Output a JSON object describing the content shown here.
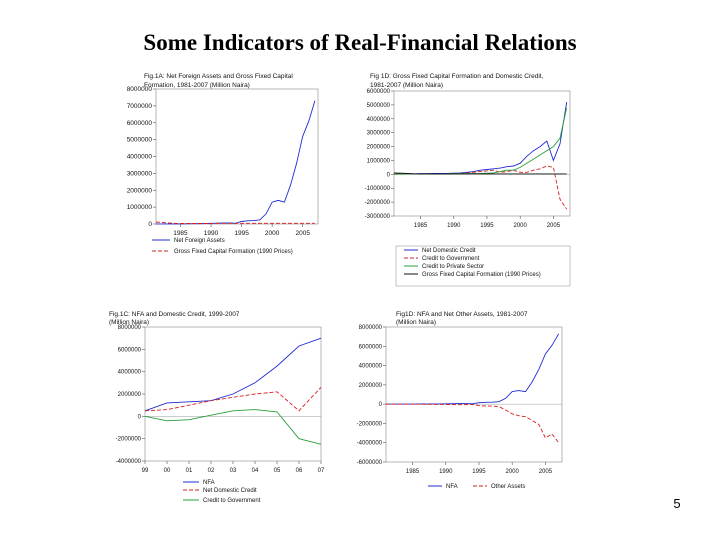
{
  "slide": {
    "title": "Some Indicators of Real-Financial Relations",
    "page_number": "5"
  },
  "chart_data": [
    {
      "type": "line",
      "title_lines": [
        "Fig.1A: Net Foreign Assets and Gross Fixed Capital",
        "Formation, 1981-2007 (Million Naira)"
      ],
      "x": [
        1981,
        1982,
        1983,
        1984,
        1985,
        1986,
        1987,
        1988,
        1989,
        1990,
        1991,
        1992,
        1993,
        1994,
        1995,
        1996,
        1997,
        1998,
        1999,
        2000,
        2001,
        2002,
        2003,
        2004,
        2005,
        2006,
        2007
      ],
      "xlim": [
        1981,
        2007.5
      ],
      "xticks": [
        1985,
        1990,
        1995,
        2000,
        2005
      ],
      "ylim": [
        0,
        8000000
      ],
      "yticks": [
        0,
        1000000,
        2000000,
        3000000,
        4000000,
        5000000,
        6000000,
        7000000,
        8000000
      ],
      "series": [
        {
          "name": "Net Foreign Assets",
          "color": "#1f2bd0",
          "dash": "",
          "values": [
            5000,
            4000,
            3000,
            3000,
            5000,
            10000,
            15000,
            20000,
            30000,
            40000,
            50000,
            60000,
            60000,
            40000,
            150000,
            190000,
            200000,
            250000,
            600000,
            1300000,
            1400000,
            1300000,
            2300000,
            3600000,
            5200000,
            6100000,
            7300000
          ]
        },
        {
          "name": "Gross Fixed Capital Formation (1990 Prices)",
          "color": "#d62020",
          "dash": "4,2",
          "values": [
            120000,
            90000,
            60000,
            40000,
            30000,
            30000,
            30000,
            30000,
            30000,
            30000,
            40000,
            40000,
            40000,
            40000,
            40000,
            40000,
            40000,
            40000,
            40000,
            40000,
            40000,
            40000,
            40000,
            40000,
            40000,
            40000,
            40000
          ]
        }
      ]
    },
    {
      "type": "line",
      "title_lines": [
        "Fig 1D: Gross Fixed Capital Formation and Domestic Credit,",
        "1981-2007 (Million Naira)"
      ],
      "x": [
        1981,
        1982,
        1983,
        1984,
        1985,
        1986,
        1987,
        1988,
        1989,
        1990,
        1991,
        1992,
        1993,
        1994,
        1995,
        1996,
        1997,
        1998,
        1999,
        2000,
        2001,
        2002,
        2003,
        2004,
        2005,
        2006,
        2007
      ],
      "xlim": [
        1981,
        2007.5
      ],
      "xticks": [
        1985,
        1990,
        1995,
        2000,
        2005
      ],
      "ylim": [
        -3000000,
        6000000
      ],
      "yticks": [
        -3000000,
        -2000000,
        -1000000,
        0,
        1000000,
        2000000,
        3000000,
        4000000,
        5000000,
        6000000
      ],
      "series": [
        {
          "name": "Net Domestic Credit",
          "color": "#1f2bd0",
          "dash": "",
          "values": [
            20000,
            30000,
            40000,
            40000,
            50000,
            50000,
            60000,
            70000,
            70000,
            80000,
            100000,
            150000,
            200000,
            300000,
            350000,
            400000,
            450000,
            550000,
            600000,
            800000,
            1300000,
            1700000,
            2000000,
            2400000,
            1000000,
            2200000,
            5200000
          ]
        },
        {
          "name": "Credit to Government",
          "color": "#d62020",
          "dash": "4,2",
          "values": [
            10000,
            20000,
            20000,
            20000,
            30000,
            30000,
            30000,
            30000,
            30000,
            30000,
            50000,
            100000,
            150000,
            200000,
            250000,
            300000,
            150000,
            200000,
            300000,
            150000,
            150000,
            300000,
            400000,
            600000,
            500000,
            -1800000,
            -2500000
          ]
        },
        {
          "name": "Credit to Private Sector",
          "color": "#29a03a",
          "dash": "",
          "values": [
            10000,
            10000,
            20000,
            20000,
            20000,
            20000,
            30000,
            30000,
            40000,
            50000,
            50000,
            50000,
            50000,
            60000,
            80000,
            100000,
            200000,
            300000,
            300000,
            500000,
            800000,
            1100000,
            1400000,
            1700000,
            2000000,
            2600000,
            4800000
          ]
        },
        {
          "name": "Gross Fixed Capital Formation (1990 Prices)",
          "color": "#111111",
          "dash": "",
          "values": [
            100000,
            80000,
            60000,
            40000,
            30000,
            30000,
            30000,
            30000,
            30000,
            30000,
            30000,
            30000,
            30000,
            30000,
            30000,
            30000,
            30000,
            30000,
            30000,
            30000,
            30000,
            30000,
            30000,
            30000,
            30000,
            30000,
            30000
          ]
        }
      ]
    },
    {
      "type": "line",
      "title_lines": [
        "Fig.1C: NFA and Domestic Credit, 1999-2007",
        "(Million Naira)"
      ],
      "x": [
        1999,
        2000,
        2001,
        2002,
        2003,
        2004,
        2005,
        2006,
        2007
      ],
      "x_tick_labels": [
        "99",
        "00",
        "01",
        "02",
        "03",
        "04",
        "05",
        "06",
        "07"
      ],
      "xlim": [
        1999,
        2007
      ],
      "ylim": [
        -4000000,
        8000000
      ],
      "yticks": [
        -4000000,
        -2000000,
        0,
        2000000,
        4000000,
        6000000,
        8000000
      ],
      "series": [
        {
          "name": "NFA",
          "color": "#1f2bd0",
          "dash": "",
          "values": [
            500000,
            1200000,
            1300000,
            1400000,
            2000000,
            3000000,
            4500000,
            6300000,
            7000000
          ]
        },
        {
          "name": "Net Domestic Credit",
          "color": "#d62020",
          "dash": "4,2",
          "values": [
            500000,
            600000,
            1000000,
            1400000,
            1700000,
            2000000,
            2200000,
            500000,
            2600000
          ]
        },
        {
          "name": "Credit to Government",
          "color": "#29a03a",
          "dash": "",
          "values": [
            0,
            -400000,
            -300000,
            100000,
            500000,
            600000,
            400000,
            -2000000,
            -2500000
          ]
        }
      ]
    },
    {
      "type": "line",
      "title_lines": [
        "Fig1D: NFA and Net Other Assets, 1981-2007",
        "(Million Naira)"
      ],
      "x": [
        1981,
        1982,
        1983,
        1984,
        1985,
        1986,
        1987,
        1988,
        1989,
        1990,
        1991,
        1992,
        1993,
        1994,
        1995,
        1996,
        1997,
        1998,
        1999,
        2000,
        2001,
        2002,
        2003,
        2004,
        2005,
        2006,
        2007
      ],
      "xlim": [
        1981,
        2007.5
      ],
      "xticks": [
        1985,
        1990,
        1995,
        2000,
        2005
      ],
      "ylim": [
        -6000000,
        8000000
      ],
      "yticks": [
        -6000000,
        -4000000,
        -2000000,
        0,
        2000000,
        4000000,
        6000000,
        8000000
      ],
      "series": [
        {
          "name": "NFA",
          "color": "#1f2bd0",
          "dash": "",
          "values": [
            5000,
            4000,
            3000,
            3000,
            5000,
            10000,
            15000,
            20000,
            30000,
            40000,
            50000,
            60000,
            60000,
            40000,
            150000,
            190000,
            200000,
            250000,
            600000,
            1300000,
            1400000,
            1300000,
            2300000,
            3600000,
            5200000,
            6100000,
            7300000
          ]
        },
        {
          "name": "Other Assets",
          "color": "#d62020",
          "dash": "4,2",
          "values": [
            -5000,
            -4000,
            -3000,
            -3000,
            -5000,
            -10000,
            -15000,
            -20000,
            -30000,
            -40000,
            -50000,
            -60000,
            -60000,
            -40000,
            -150000,
            -190000,
            -200000,
            -250000,
            -600000,
            -1000000,
            -1200000,
            -1300000,
            -1700000,
            -2100000,
            -3500000,
            -3100000,
            -4000000
          ]
        }
      ]
    }
  ]
}
